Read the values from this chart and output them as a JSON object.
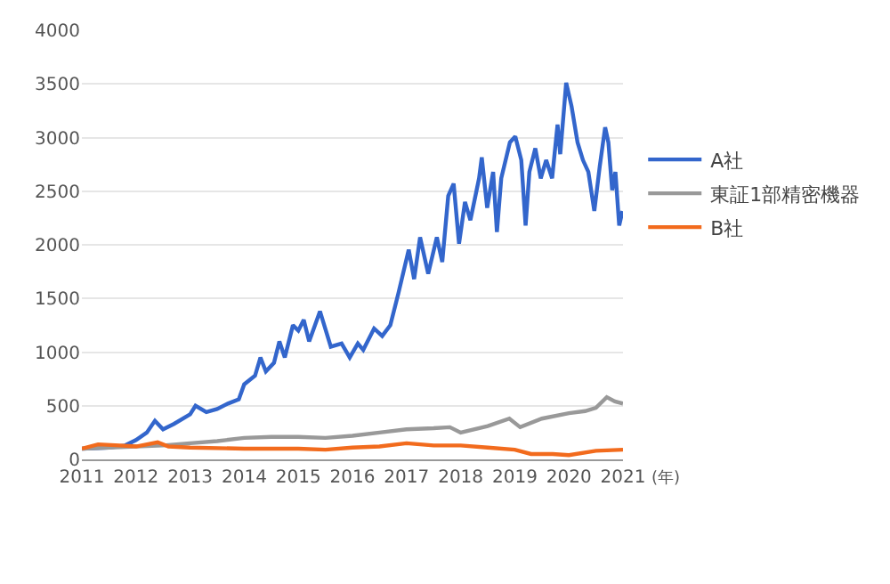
{
  "chart_data": {
    "type": "line",
    "xlabel": "(年)",
    "xlim": [
      2011,
      2021
    ],
    "xticks": [
      2011,
      2012,
      2013,
      2014,
      2015,
      2016,
      2017,
      2018,
      2019,
      2020,
      2021
    ],
    "ylim": [
      0,
      4000
    ],
    "yticks": [
      0,
      500,
      1000,
      1500,
      2000,
      2500,
      3000,
      3500,
      4000
    ],
    "grid": "y",
    "legend": "right",
    "marker": "none",
    "line_style": "solid",
    "series": [
      {
        "name": "A社",
        "color": "#3366cc",
        "x": [
          2011.0,
          2011.5,
          2011.8,
          2012.0,
          2012.2,
          2012.35,
          2012.5,
          2012.7,
          2013.0,
          2013.1,
          2013.3,
          2013.5,
          2013.7,
          2013.9,
          2014.0,
          2014.2,
          2014.3,
          2014.4,
          2014.55,
          2014.65,
          2014.75,
          2014.9,
          2015.0,
          2015.1,
          2015.2,
          2015.4,
          2015.6,
          2015.8,
          2015.95,
          2016.1,
          2016.2,
          2016.4,
          2016.55,
          2016.7,
          2016.85,
          2017.04,
          2017.14,
          2017.25,
          2017.4,
          2017.56,
          2017.66,
          2017.77,
          2017.87,
          2017.92,
          2017.97,
          2018.08,
          2018.18,
          2018.34,
          2018.39,
          2018.49,
          2018.6,
          2018.67,
          2018.75,
          2018.91,
          2019.01,
          2019.12,
          2019.2,
          2019.27,
          2019.38,
          2019.48,
          2019.58,
          2019.69,
          2019.79,
          2019.84,
          2019.95,
          2020.05,
          2020.16,
          2020.26,
          2020.36,
          2020.47,
          2020.57,
          2020.67,
          2020.73,
          2020.8,
          2020.86,
          2020.93,
          2020.99
        ],
        "values": [
          100,
          110,
          130,
          180,
          250,
          360,
          280,
          330,
          420,
          500,
          440,
          470,
          520,
          560,
          700,
          780,
          950,
          820,
          900,
          1100,
          950,
          1250,
          1200,
          1300,
          1100,
          1380,
          1050,
          1080,
          950,
          1080,
          1020,
          1220,
          1150,
          1250,
          1550,
          1955,
          1680,
          2070,
          1730,
          2070,
          1840,
          2455,
          2570,
          2290,
          2010,
          2400,
          2230,
          2620,
          2815,
          2345,
          2680,
          2120,
          2620,
          2955,
          3010,
          2790,
          2180,
          2680,
          2900,
          2620,
          2790,
          2620,
          3120,
          2845,
          3510,
          3290,
          2955,
          2790,
          2680,
          2315,
          2730,
          3095,
          2955,
          2510,
          2680,
          2180,
          2315
        ]
      },
      {
        "name": "東証1部精密機器",
        "color": "#999999",
        "x": [
          2011.0,
          2011.5,
          2012.0,
          2012.5,
          2013.0,
          2013.5,
          2014.0,
          2014.5,
          2015.0,
          2015.5,
          2016.0,
          2016.5,
          2017.0,
          2017.5,
          2017.8,
          2018.0,
          2018.5,
          2018.9,
          2019.1,
          2019.5,
          2020.0,
          2020.3,
          2020.5,
          2020.7,
          2020.85,
          2021.0
        ],
        "values": [
          100,
          110,
          120,
          130,
          150,
          170,
          200,
          210,
          210,
          200,
          220,
          250,
          280,
          290,
          300,
          250,
          310,
          380,
          300,
          380,
          430,
          450,
          480,
          580,
          540,
          520
        ]
      },
      {
        "name": "B社",
        "color": "#f26b1d",
        "x": [
          2011.0,
          2011.3,
          2011.7,
          2012.0,
          2012.4,
          2012.6,
          2013.0,
          2014.0,
          2015.0,
          2015.5,
          2016.0,
          2016.5,
          2017.0,
          2017.5,
          2018.0,
          2018.5,
          2019.0,
          2019.3,
          2019.7,
          2020.0,
          2020.5,
          2021.0
        ],
        "values": [
          100,
          140,
          130,
          120,
          160,
          120,
          110,
          100,
          100,
          90,
          110,
          120,
          150,
          130,
          130,
          110,
          90,
          50,
          50,
          40,
          80,
          90
        ]
      }
    ]
  }
}
